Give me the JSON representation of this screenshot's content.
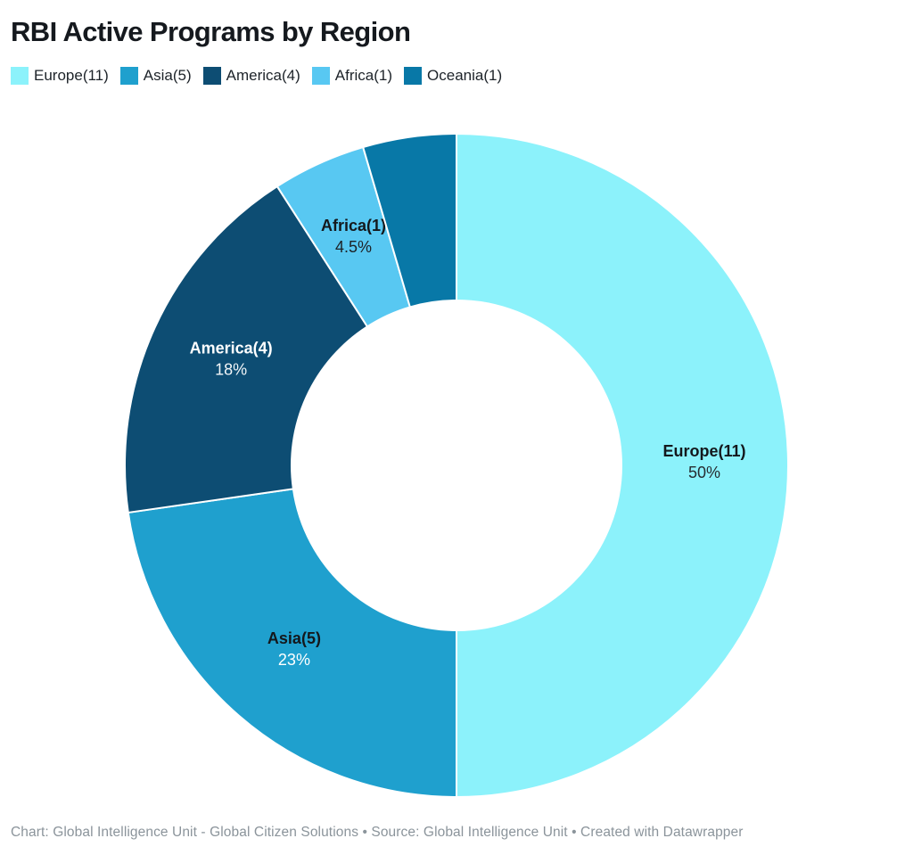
{
  "title": "RBI Active Programs by Region",
  "footer": {
    "text": "Chart: Global Intelligence Unit - Global Citizen Solutions  • Source: Global Intelligence Unit • Created with Datawrapper"
  },
  "chart_data": {
    "type": "pie",
    "subtype": "donut",
    "title": "RBI Active Programs by Region",
    "legend_position": "top-left",
    "direction": "clockwise",
    "start_angle_deg": 0,
    "categories": [
      "Europe",
      "Asia",
      "America",
      "Africa",
      "Oceania"
    ],
    "values": [
      11,
      5,
      4,
      1,
      1
    ],
    "total": 22,
    "slices": [
      {
        "category": "Europe",
        "value": 11,
        "legend_label": "Europe(11)",
        "percent": 50,
        "percent_label": "50%",
        "color": "#8cf2fb",
        "show_label": true,
        "label_color": "#14181c",
        "percent_color": "#272c31"
      },
      {
        "category": "Asia",
        "value": 5,
        "legend_label": "Asia(5)",
        "percent": 22.7,
        "percent_label": "23%",
        "color": "#1fa0ce",
        "show_label": true,
        "label_color": "#14181c",
        "percent_color": "#ffffff"
      },
      {
        "category": "America",
        "value": 4,
        "legend_label": "America(4)",
        "percent": 18.2,
        "percent_label": "18%",
        "color": "#0d4d73",
        "show_label": true,
        "label_color": "#ffffff",
        "percent_color": "#f2f6f8"
      },
      {
        "category": "Africa",
        "value": 1,
        "legend_label": "Africa(1)",
        "percent": 4.5,
        "percent_label": "4.5%",
        "color": "#58c8f2",
        "show_label": true,
        "label_color": "#14181c",
        "percent_color": "#1d2227"
      },
      {
        "category": "Oceania",
        "value": 1,
        "legend_label": "Oceania(1)",
        "percent": 4.5,
        "percent_label": "",
        "color": "#0878a7",
        "show_label": false,
        "label_color": "#14181c",
        "percent_color": "#1d2227"
      }
    ]
  }
}
